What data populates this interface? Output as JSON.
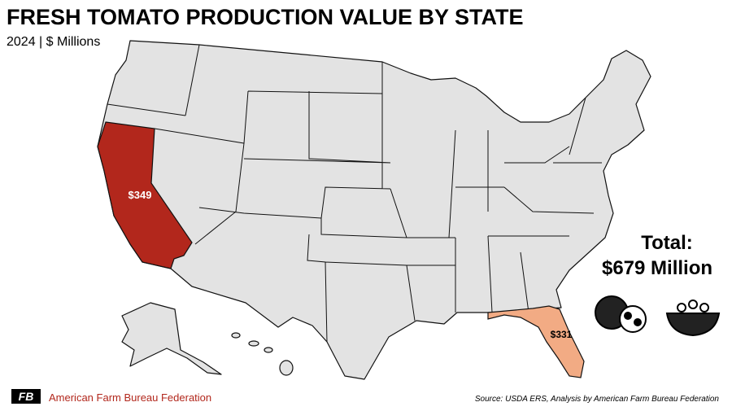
{
  "header": {
    "title": "FRESH TOMATO PRODUCTION VALUE BY STATE",
    "subtitle": "2024 | $ Millions"
  },
  "regions": [
    {
      "label": "$349",
      "color": "#b2271c"
    },
    {
      "label": "$331",
      "color": "#f2ab84"
    }
  ],
  "total": {
    "heading": "Total:",
    "label": "$679 Million"
  },
  "footer": {
    "brand": "American Farm Bureau Federation",
    "logo": "FB",
    "source": "Source: USDA ERS, Analysis by American Farm Bureau Federation"
  }
}
